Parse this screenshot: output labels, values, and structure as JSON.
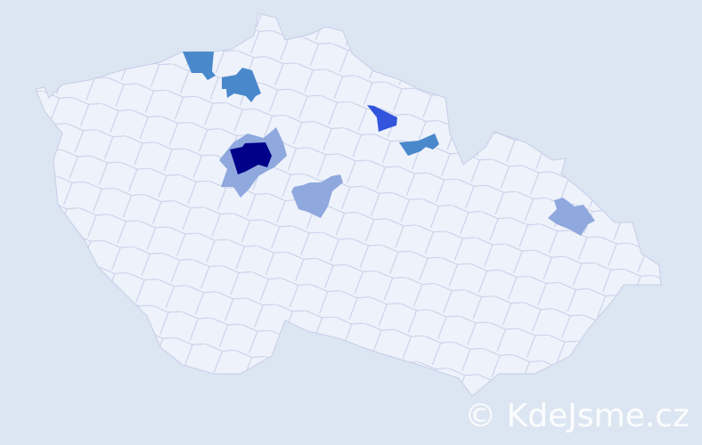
{
  "watermark": "© KdeJsme.cz",
  "colors": {
    "background": "#dce6f2",
    "district_base": "#eef2fa",
    "district_border": "#c6cde8",
    "level_1": "#8fa8de",
    "level_2": "#4a88cc",
    "level_3": "#3355dd",
    "level_4": "#000088"
  },
  "highlighted_regions": [
    {
      "name": "praha",
      "level": 4
    },
    {
      "name": "praha-surroundings",
      "level": 1
    },
    {
      "name": "north-west-1",
      "level": 2
    },
    {
      "name": "north-west-2",
      "level": 2
    },
    {
      "name": "north-east-1",
      "level": 3
    },
    {
      "name": "north-east-2",
      "level": 2
    },
    {
      "name": "central-1",
      "level": 1
    },
    {
      "name": "east-1",
      "level": 1
    }
  ]
}
